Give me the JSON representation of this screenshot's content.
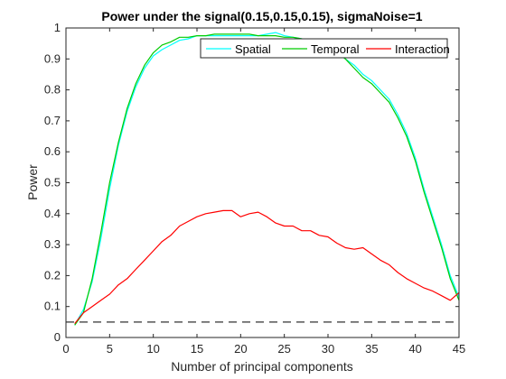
{
  "chart_data": {
    "type": "line",
    "title": "Power under the signal(0.15,0.15,0.15), sigmaNoise=1",
    "xlabel": "Number of principal components",
    "ylabel": "Power",
    "xlim": [
      0,
      45
    ],
    "ylim": [
      0,
      1
    ],
    "xticks": [
      "0",
      "5",
      "10",
      "15",
      "20",
      "25",
      "30",
      "35",
      "40",
      "45"
    ],
    "yticks": [
      "0",
      "0.1",
      "0.2",
      "0.3",
      "0.4",
      "0.5",
      "0.6",
      "0.7",
      "0.8",
      "0.9",
      "1"
    ],
    "grid": false,
    "legend_position": "top-right",
    "x": [
      1,
      2,
      3,
      4,
      5,
      6,
      7,
      8,
      9,
      10,
      11,
      12,
      13,
      14,
      15,
      16,
      17,
      18,
      19,
      20,
      21,
      22,
      23,
      24,
      25,
      26,
      27,
      28,
      29,
      30,
      31,
      32,
      33,
      34,
      35,
      36,
      37,
      38,
      39,
      40,
      41,
      42,
      43,
      44,
      45
    ],
    "series": [
      {
        "name": "Spatial",
        "color": "#00ffff",
        "values": [
          0.04,
          0.09,
          0.18,
          0.32,
          0.48,
          0.62,
          0.73,
          0.81,
          0.87,
          0.91,
          0.93,
          0.945,
          0.96,
          0.965,
          0.975,
          0.975,
          0.975,
          0.975,
          0.975,
          0.975,
          0.975,
          0.975,
          0.98,
          0.985,
          0.975,
          0.97,
          0.965,
          0.96,
          0.95,
          0.94,
          0.92,
          0.9,
          0.88,
          0.85,
          0.83,
          0.8,
          0.77,
          0.72,
          0.66,
          0.58,
          0.48,
          0.39,
          0.3,
          0.2,
          0.13
        ]
      },
      {
        "name": "Temporal",
        "color": "#00cc00",
        "values": [
          0.04,
          0.08,
          0.19,
          0.34,
          0.5,
          0.63,
          0.74,
          0.82,
          0.88,
          0.92,
          0.945,
          0.955,
          0.97,
          0.97,
          0.975,
          0.975,
          0.98,
          0.98,
          0.98,
          0.98,
          0.98,
          0.975,
          0.975,
          0.975,
          0.97,
          0.97,
          0.965,
          0.955,
          0.95,
          0.94,
          0.92,
          0.9,
          0.87,
          0.84,
          0.82,
          0.79,
          0.76,
          0.71,
          0.65,
          0.57,
          0.47,
          0.38,
          0.29,
          0.19,
          0.12
        ]
      },
      {
        "name": "Interaction",
        "color": "#ff0000",
        "values": [
          0.045,
          0.08,
          0.1,
          0.12,
          0.14,
          0.17,
          0.19,
          0.22,
          0.25,
          0.28,
          0.31,
          0.33,
          0.36,
          0.375,
          0.39,
          0.4,
          0.405,
          0.41,
          0.41,
          0.39,
          0.4,
          0.405,
          0.39,
          0.37,
          0.36,
          0.36,
          0.345,
          0.345,
          0.33,
          0.325,
          0.305,
          0.29,
          0.285,
          0.29,
          0.27,
          0.25,
          0.235,
          0.21,
          0.19,
          0.175,
          0.16,
          0.15,
          0.135,
          0.12,
          0.145
        ]
      }
    ],
    "reference_line": {
      "y": 0.05,
      "color": "#555555",
      "style": "dashed"
    }
  }
}
